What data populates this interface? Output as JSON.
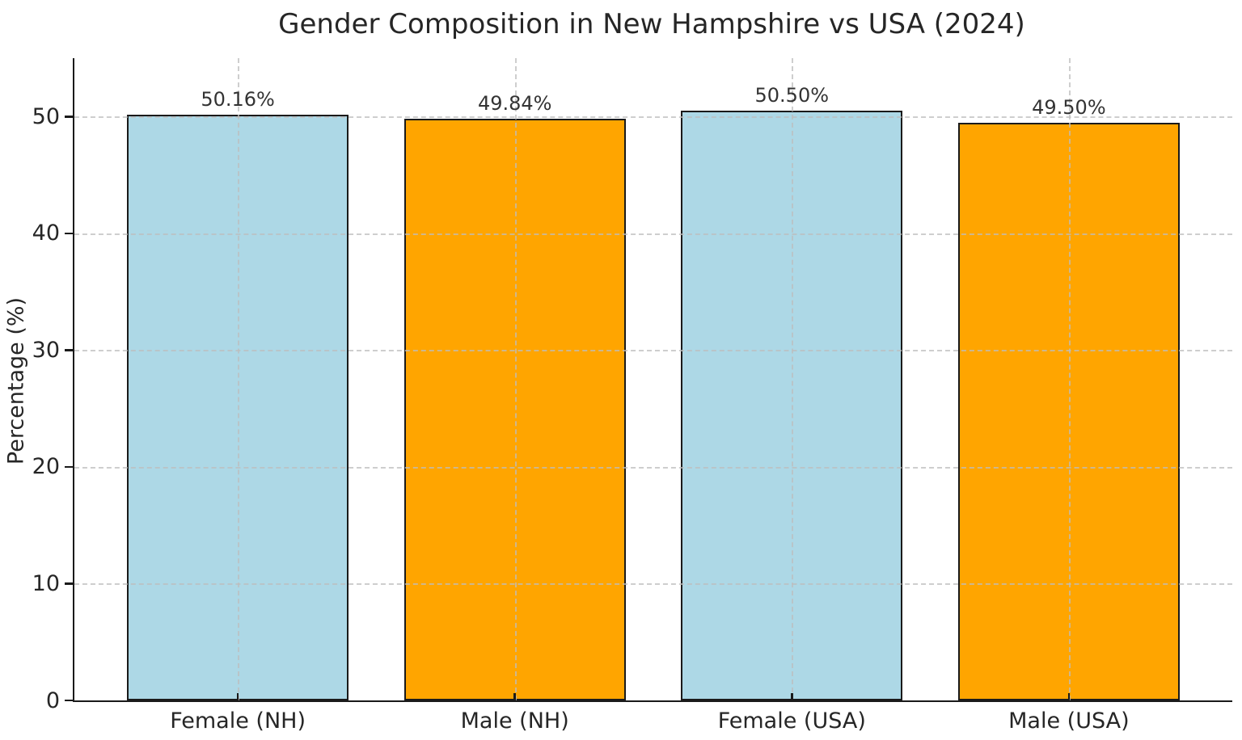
{
  "chart_data": {
    "type": "bar",
    "title": "Gender Composition in New Hampshire vs USA (2024)",
    "xlabel": "",
    "ylabel": "Percentage (%)",
    "categories": [
      "Female (NH)",
      "Male (NH)",
      "Female (USA)",
      "Male (USA)"
    ],
    "values": [
      50.16,
      49.84,
      50.5,
      49.5
    ],
    "value_labels": [
      "50.16%",
      "49.84%",
      "50.50%",
      "49.50%"
    ],
    "bar_colors": [
      "#ADD8E6",
      "#FFA500",
      "#ADD8E6",
      "#FFA500"
    ],
    "bar_edge_color": "#1a1a1a",
    "ylim": [
      0,
      55
    ],
    "yticks": [
      0,
      10,
      20,
      30,
      40,
      50
    ],
    "grid": "dashed gridlines on both axes, drawn above bars",
    "grid_color": "#bebebe",
    "legend": "none",
    "background_color": "#ffffff",
    "text_color": "#262626"
  }
}
